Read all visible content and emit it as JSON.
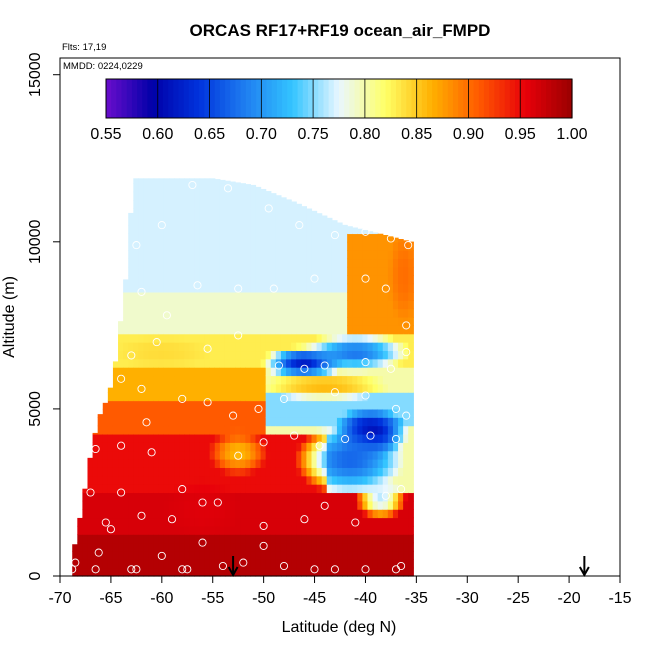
{
  "chart_data": {
    "type": "heatmap",
    "title": "ORCAS RF17+RF19 ocean_air_FMPD",
    "flights_label": "Flts: 17,19",
    "dates_label": "MMDD: 0224,0229",
    "xlabel": "Latitude (deg N)",
    "ylabel": "Altitude (m)",
    "xlim": [
      -70,
      -15
    ],
    "ylim": [
      0,
      15500
    ],
    "x_ticks": [
      -70,
      -65,
      -60,
      -55,
      -50,
      -45,
      -40,
      -35,
      -30,
      -25,
      -20,
      -15
    ],
    "x_tick_labels": [
      "-70",
      "-65",
      "-60",
      "-55",
      "-50",
      "-45",
      "-40",
      "-35",
      "-30",
      "-25",
      "-20",
      "-15"
    ],
    "y_ticks": [
      0,
      5000,
      10000,
      15000
    ],
    "y_tick_labels": [
      "0",
      "5000",
      "10000",
      "15000"
    ],
    "colorbar": {
      "range": [
        0.55,
        1.0
      ],
      "ticks": [
        0.55,
        0.6,
        0.65,
        0.7,
        0.75,
        0.8,
        0.85,
        0.9,
        0.95,
        1.0
      ],
      "tick_labels": [
        "0.55",
        "0.60",
        "0.65",
        "0.70",
        "0.75",
        "0.80",
        "0.85",
        "0.90",
        "0.95",
        "1.00"
      ],
      "colors": [
        "#6a0dcc",
        "#0000a8",
        "#0033dd",
        "#1f7ff0",
        "#33c4ff",
        "#e9f7ff",
        "#ffff66",
        "#ffb000",
        "#ff5a00",
        "#e8000a",
        "#9a0000"
      ]
    },
    "profile_boundaries": [
      {
        "lat": -68.8,
        "top": 600
      },
      {
        "lat": -68.3,
        "top": 1300
      },
      {
        "lat": -67.5,
        "top": 2700
      },
      {
        "lat": -66.8,
        "top": 4000
      },
      {
        "lat": -66.0,
        "top": 4900
      },
      {
        "lat": -65.2,
        "top": 5400
      },
      {
        "lat": -64.5,
        "top": 6500
      },
      {
        "lat": -63.5,
        "top": 9000
      },
      {
        "lat": -62.8,
        "top": 11900
      },
      {
        "lat": -55.0,
        "top": 11900
      },
      {
        "lat": -51.0,
        "top": 11700
      },
      {
        "lat": -47.0,
        "top": 11200
      },
      {
        "lat": -42.0,
        "top": 10500
      },
      {
        "lat": -38.0,
        "top": 10200
      },
      {
        "lat": -35.5,
        "top": 10000
      }
    ],
    "data_extent": {
      "lat_min": -68.8,
      "lat_max": -35.5
    },
    "field_regions": [
      {
        "lat_min": -70,
        "lat_max": -35,
        "alt_min": 0,
        "alt_max": 1200,
        "value": 0.985
      },
      {
        "lat_min": -70,
        "lat_max": -35,
        "alt_min": 1200,
        "alt_max": 2400,
        "value": 0.965
      },
      {
        "lat_min": -70,
        "lat_max": -44,
        "alt_min": 2400,
        "alt_max": 4200,
        "value": 0.95
      },
      {
        "lat_min": -70,
        "lat_max": -50,
        "alt_min": 4200,
        "alt_max": 5200,
        "value": 0.91
      },
      {
        "lat_min": -70,
        "lat_max": -50,
        "alt_min": 5200,
        "alt_max": 6300,
        "value": 0.865
      },
      {
        "lat_min": -50,
        "lat_max": -35,
        "alt_min": 4600,
        "alt_max": 5400,
        "value": 0.75
      },
      {
        "lat_min": -70,
        "lat_max": -35,
        "alt_min": 6300,
        "alt_max": 7300,
        "value": 0.83
      },
      {
        "lat_min": -70,
        "lat_max": -35,
        "alt_min": 7300,
        "alt_max": 8500,
        "value": 0.79
      },
      {
        "lat_min": -70,
        "lat_max": -35,
        "alt_min": 8500,
        "alt_max": 12000,
        "value": 0.77
      },
      {
        "lat_min": -42,
        "lat_max": -35,
        "alt_min": 7300,
        "alt_max": 10200,
        "value": 0.88
      }
    ],
    "field_features": [
      {
        "lat": -46.0,
        "alt": 6400,
        "rlat": 4.2,
        "ralt": 500,
        "value": 0.62
      },
      {
        "lat": -41.0,
        "alt": 6700,
        "rlat": 5.5,
        "ralt": 600,
        "value": 0.68
      },
      {
        "lat": -44.0,
        "alt": 5700,
        "rlat": 6.5,
        "ralt": 450,
        "value": 0.86
      },
      {
        "lat": -39.5,
        "alt": 4300,
        "rlat": 3.8,
        "ralt": 800,
        "value": 0.6
      },
      {
        "lat": -41.5,
        "alt": 3500,
        "rlat": 5.5,
        "ralt": 1100,
        "value": 0.67
      },
      {
        "lat": -38.5,
        "alt": 2300,
        "rlat": 2.6,
        "ralt": 600,
        "value": 0.76
      },
      {
        "lat": -52.5,
        "alt": 3700,
        "rlat": 3.0,
        "ralt": 700,
        "value": 0.86
      },
      {
        "lat": -60.5,
        "alt": 10500,
        "rlat": 5.5,
        "ralt": 1200,
        "value": 0.77
      },
      {
        "lat": -36.2,
        "alt": 9000,
        "rlat": 1.6,
        "ralt": 1500,
        "value": 0.9
      },
      {
        "lat": -60.0,
        "alt": 6700,
        "rlat": 5.0,
        "ralt": 500,
        "value": 0.84
      },
      {
        "lat": -56.0,
        "alt": 2000,
        "rlat": 4.0,
        "ralt": 900,
        "value": 0.96
      }
    ],
    "points": [
      [
        -68.8,
        200
      ],
      [
        -68.5,
        400
      ],
      [
        -66.5,
        200
      ],
      [
        -66.2,
        700
      ],
      [
        -65.0,
        1400
      ],
      [
        -63.0,
        200
      ],
      [
        -62.5,
        200
      ],
      [
        -60.0,
        600
      ],
      [
        -58.0,
        200
      ],
      [
        -57.5,
        200
      ],
      [
        -56.0,
        1000
      ],
      [
        -54.0,
        300
      ],
      [
        -52.0,
        400
      ],
      [
        -50.0,
        900
      ],
      [
        -48.0,
        300
      ],
      [
        -45.0,
        200
      ],
      [
        -43.0,
        200
      ],
      [
        -40.0,
        200
      ],
      [
        -37.0,
        200
      ],
      [
        -36.5,
        300
      ],
      [
        -65.5,
        1600
      ],
      [
        -64.0,
        2500
      ],
      [
        -62.0,
        1800
      ],
      [
        -59.0,
        1700
      ],
      [
        -56.0,
        2200
      ],
      [
        -54.5,
        2200
      ],
      [
        -50.0,
        1500
      ],
      [
        -46.0,
        1700
      ],
      [
        -44.0,
        2100
      ],
      [
        -41.0,
        1600
      ],
      [
        -38.0,
        2400
      ],
      [
        -36.5,
        2600
      ],
      [
        -67.0,
        2500
      ],
      [
        -66.5,
        3800
      ],
      [
        -64.0,
        3900
      ],
      [
        -61.0,
        3700
      ],
      [
        -58.0,
        2600
      ],
      [
        -52.5,
        3600
      ],
      [
        -50.0,
        4000
      ],
      [
        -47.0,
        4200
      ],
      [
        -44.5,
        3900
      ],
      [
        -42.0,
        4100
      ],
      [
        -39.5,
        4200
      ],
      [
        -37.0,
        4100
      ],
      [
        -61.5,
        4600
      ],
      [
        -58.0,
        5300
      ],
      [
        -55.5,
        5200
      ],
      [
        -53.0,
        4800
      ],
      [
        -50.5,
        5000
      ],
      [
        -48.0,
        5300
      ],
      [
        -43.0,
        5500
      ],
      [
        -40.0,
        5400
      ],
      [
        -37.0,
        5000
      ],
      [
        -36.0,
        4800
      ],
      [
        -62.0,
        5600
      ],
      [
        -64.0,
        5900
      ],
      [
        -65.0,
        6700
      ],
      [
        -63.0,
        6600
      ],
      [
        -60.5,
        7000
      ],
      [
        -55.5,
        6800
      ],
      [
        -52.5,
        7200
      ],
      [
        -48.5,
        6300
      ],
      [
        -46.0,
        6200
      ],
      [
        -44.0,
        6300
      ],
      [
        -40.0,
        6400
      ],
      [
        -37.5,
        6200
      ],
      [
        -36.0,
        6700
      ],
      [
        -62.0,
        8500
      ],
      [
        -59.5,
        7800
      ],
      [
        -56.5,
        8700
      ],
      [
        -52.5,
        8600
      ],
      [
        -49.0,
        8600
      ],
      [
        -45.0,
        8900
      ],
      [
        -40.0,
        8900
      ],
      [
        -38.0,
        8600
      ],
      [
        -36.0,
        7500
      ],
      [
        -62.5,
        9900
      ],
      [
        -60.0,
        10500
      ],
      [
        -57.0,
        11700
      ],
      [
        -53.5,
        11600
      ],
      [
        -49.5,
        11000
      ],
      [
        -46.5,
        10500
      ],
      [
        -43.0,
        10200
      ],
      [
        -40.0,
        10300
      ],
      [
        -37.5,
        10100
      ],
      [
        -35.8,
        9900
      ]
    ],
    "arrows": [
      {
        "lat": -53.0,
        "label": ""
      },
      {
        "lat": -18.5,
        "label": ""
      }
    ]
  }
}
